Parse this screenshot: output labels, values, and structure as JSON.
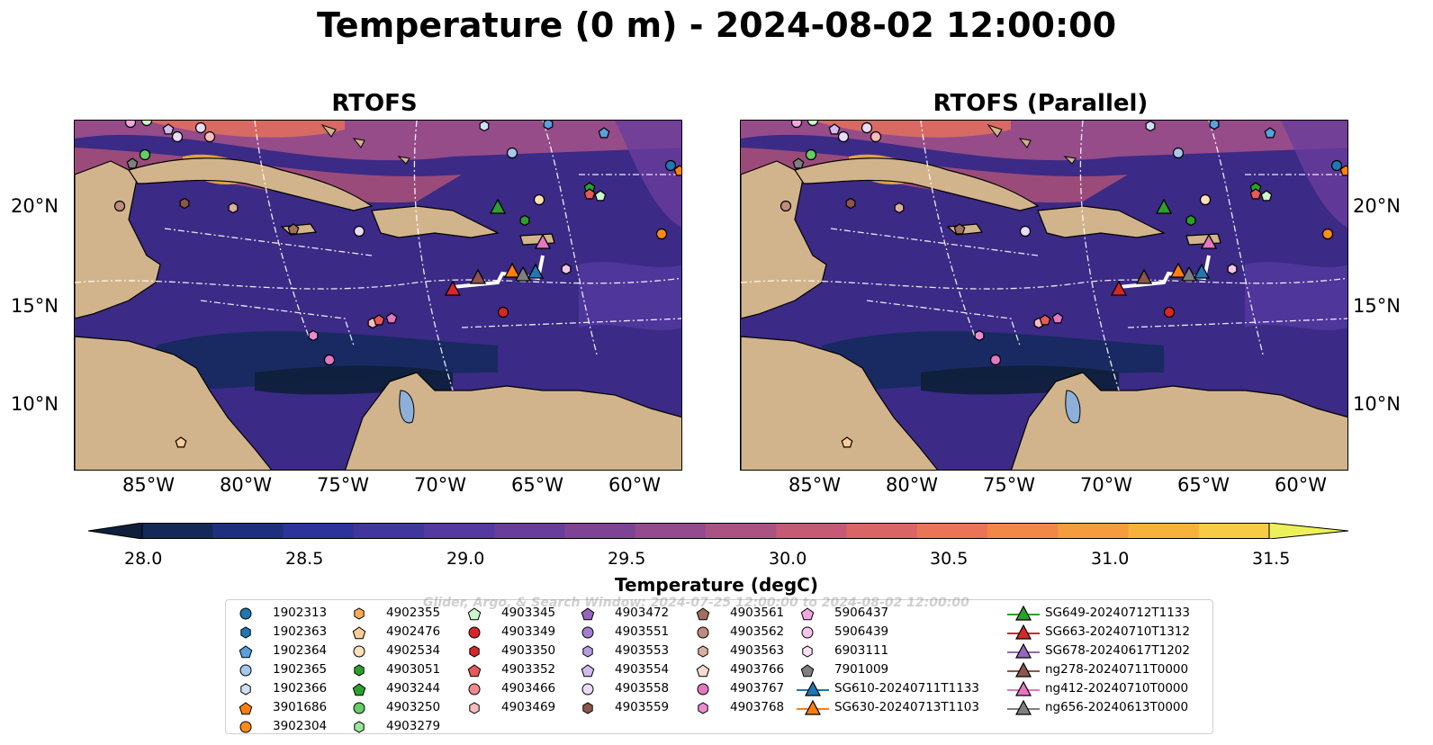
{
  "title": "Temperature (0 m) - 2024-08-02 12:00:00",
  "panels": [
    {
      "title": "RTOFS"
    },
    {
      "title": "RTOFS (Parallel)"
    }
  ],
  "axes": {
    "lon_labels": [
      "85°W",
      "80°W",
      "75°W",
      "70°W",
      "65°W",
      "60°W"
    ],
    "lat_labels": [
      "20°N",
      "15°N",
      "10°N"
    ]
  },
  "colorbar": {
    "title": "Temperature (degC)",
    "ticks": [
      "28.0",
      "28.5",
      "29.0",
      "29.5",
      "30.0",
      "30.5",
      "31.0",
      "31.5"
    ],
    "min": 28.0,
    "max": 31.5,
    "colors": [
      "#0d1f3a",
      "#14295a",
      "#1f2f80",
      "#2d3398",
      "#40369e",
      "#5439a0",
      "#693d9c",
      "#7f4396",
      "#954a8e",
      "#ac5282",
      "#c45a75",
      "#da6566",
      "#ea7556",
      "#f28848",
      "#f59c3e",
      "#f7b23b",
      "#f7cb46",
      "#eef05a"
    ]
  },
  "watermark": "Glider, Argo, & Search Window: 2024-07-25 12:00:00 to 2024-08-02 12:00:00",
  "legend": [
    [
      {
        "label": "1902313",
        "marker": "circle",
        "color": "#1f77b4"
      },
      {
        "label": "1902363",
        "marker": "hexagon",
        "color": "#1f77b4"
      },
      {
        "label": "1902364",
        "marker": "pentagon",
        "color": "#5aa0dc"
      },
      {
        "label": "1902365",
        "marker": "circle",
        "color": "#a6c8ec"
      },
      {
        "label": "1902366",
        "marker": "hexagon",
        "color": "#cfe0f5"
      },
      {
        "label": "3901686",
        "marker": "pentagon",
        "color": "#ff7f0e"
      },
      {
        "label": "3902304",
        "marker": "circle",
        "color": "#ff8c1a"
      }
    ],
    [
      {
        "label": "4902355",
        "marker": "hexagon",
        "color": "#ffaa55"
      },
      {
        "label": "4902476",
        "marker": "pentagon",
        "color": "#ffcc99"
      },
      {
        "label": "4902534",
        "marker": "circle",
        "color": "#ffe0bb"
      },
      {
        "label": "4903051",
        "marker": "hexagon",
        "color": "#2ca02c"
      },
      {
        "label": "4903244",
        "marker": "pentagon",
        "color": "#2ca02c"
      },
      {
        "label": "4903250",
        "marker": "circle",
        "color": "#66cc66"
      },
      {
        "label": "4903279",
        "marker": "hexagon",
        "color": "#99e699"
      }
    ],
    [
      {
        "label": "4903345",
        "marker": "pentagon",
        "color": "#ccf5cc"
      },
      {
        "label": "4903349",
        "marker": "circle",
        "color": "#d62728"
      },
      {
        "label": "4903350",
        "marker": "hexagon",
        "color": "#d62728"
      },
      {
        "label": "4903352",
        "marker": "pentagon",
        "color": "#e8595a"
      },
      {
        "label": "4903466",
        "marker": "circle",
        "color": "#f08a8a"
      },
      {
        "label": "4903469",
        "marker": "hexagon",
        "color": "#f7bcbc"
      }
    ],
    [
      {
        "label": "4903472",
        "marker": "pentagon",
        "color": "#9467bd"
      },
      {
        "label": "4903551",
        "marker": "circle",
        "color": "#a47fd0"
      },
      {
        "label": "4903553",
        "marker": "hexagon",
        "color": "#b89ce0"
      },
      {
        "label": "4903554",
        "marker": "pentagon",
        "color": "#d0bcee"
      },
      {
        "label": "4903558",
        "marker": "circle",
        "color": "#e8dcf8"
      },
      {
        "label": "4903559",
        "marker": "hexagon",
        "color": "#8c564b"
      }
    ],
    [
      {
        "label": "4903561",
        "marker": "pentagon",
        "color": "#a0705f"
      },
      {
        "label": "4903562",
        "marker": "circle",
        "color": "#c08d7c"
      },
      {
        "label": "4903563",
        "marker": "hexagon",
        "color": "#dcae9e"
      },
      {
        "label": "4903766",
        "marker": "pentagon",
        "color": "#f5dcd3"
      },
      {
        "label": "4903767",
        "marker": "circle",
        "color": "#e377c2"
      },
      {
        "label": "4903768",
        "marker": "hexagon",
        "color": "#e88bd0"
      }
    ],
    [
      {
        "label": "5906437",
        "marker": "pentagon",
        "color": "#f2a8de"
      },
      {
        "label": "5906439",
        "marker": "circle",
        "color": "#f7c5ea"
      },
      {
        "label": "6903111",
        "marker": "hexagon",
        "color": "#fbe0f4"
      },
      {
        "label": "7901009",
        "marker": "pentagon",
        "color": "#7f7f7f"
      },
      {
        "label": "SG610-20240711T1133",
        "marker": "triangle-line",
        "color": "#1f77b4"
      },
      {
        "label": "SG630-20240713T1103",
        "marker": "triangle-line",
        "color": "#ff7f0e"
      }
    ],
    [
      {
        "label": "SG649-20240712T1133",
        "marker": "triangle-line",
        "color": "#2ca02c"
      },
      {
        "label": "SG663-20240710T1312",
        "marker": "triangle-line",
        "color": "#d62728"
      },
      {
        "label": "SG678-20240617T1202",
        "marker": "triangle-line",
        "color": "#9467bd"
      },
      {
        "label": "ng278-20240711T0000",
        "marker": "triangle-line",
        "color": "#8c564b"
      },
      {
        "label": "ng412-20240710T0000",
        "marker": "triangle-line",
        "color": "#e377c2"
      },
      {
        "label": "ng656-20240613T0000",
        "marker": "triangle-line",
        "color": "#7f7f7f"
      }
    ]
  ]
}
